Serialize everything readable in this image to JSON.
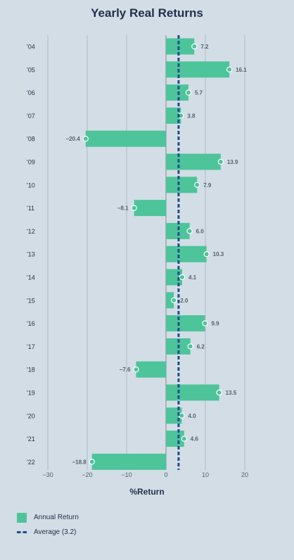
{
  "chart_data": {
    "type": "bar",
    "orientation": "horizontal",
    "title": "Yearly Real Returns",
    "xlabel": "%Return",
    "ylabel": "",
    "xlim": [
      -30,
      20
    ],
    "xticks": [
      -30,
      -20,
      -10,
      0,
      10,
      20
    ],
    "xtick_labels": [
      "−30",
      "−20",
      "−10",
      "0",
      "10",
      "20"
    ],
    "grid": true,
    "legend_position": "bottom-left",
    "categories": [
      "'04",
      "'05",
      "'06",
      "'07",
      "'08",
      "'09",
      "'10",
      "'11",
      "'12",
      "'13",
      "'14",
      "'15",
      "'16",
      "'17",
      "'18",
      "'19",
      "'20",
      "'21",
      "'22"
    ],
    "series": [
      {
        "name": "Annual Return",
        "values": [
          7.2,
          16.1,
          5.7,
          3.8,
          -20.4,
          13.9,
          7.9,
          -8.1,
          6.0,
          10.3,
          4.1,
          2.0,
          9.9,
          6.2,
          -7.6,
          13.5,
          4.0,
          4.6,
          -18.8
        ],
        "value_labels": [
          "7.2",
          "16.1",
          "5.7",
          "3.8",
          "−20.4",
          "13.9",
          "7.9",
          "−8.1",
          "6.0",
          "10.3",
          "4.1",
          "2.0",
          "9.9",
          "6.2",
          "−7.6",
          "13.5",
          "4.0",
          "4.6",
          "−18.8"
        ],
        "color": "#4dc49a"
      }
    ],
    "reference_line": {
      "name": "Average (3.2)",
      "value": 3.2,
      "color": "#1e4e8c",
      "style": "dashed"
    }
  },
  "legend": {
    "items": [
      {
        "label": "Annual Return"
      },
      {
        "label": "Average (3.2)"
      }
    ]
  },
  "colors": {
    "background": "#d3dde5",
    "bar": "#4dc49a",
    "average_line": "#1e4e8c",
    "text": "#1f2f4d",
    "tick_text": "#55606e",
    "grid": "#a9b4be"
  }
}
